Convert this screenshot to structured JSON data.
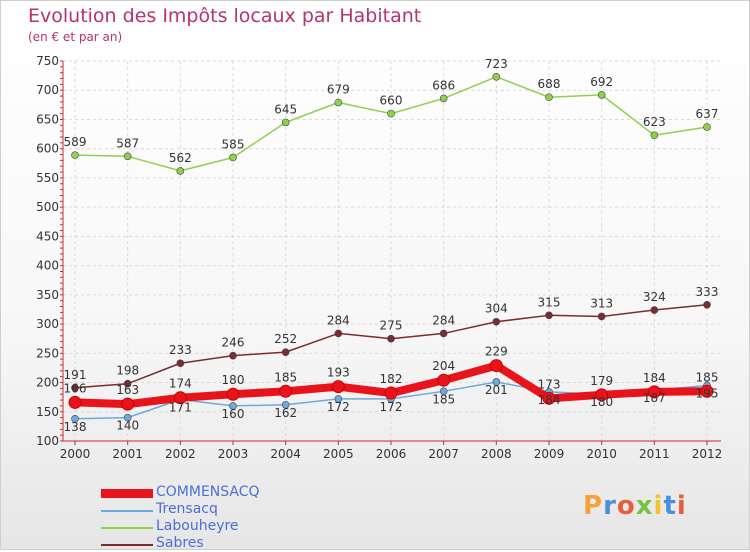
{
  "title": "Evolution des Impôts locaux par Habitant",
  "subtitle": "(en € et par an)",
  "logo": {
    "letters": [
      "P",
      "r",
      "o",
      "x",
      "i",
      "t",
      "i"
    ],
    "colors": [
      "#f2a33a",
      "#4a90d9",
      "#e85d3b",
      "#7ac143",
      "#f2c230",
      "#4a90d9",
      "#e85d3b"
    ]
  },
  "chart_data": {
    "type": "line",
    "title": "Evolution des Impôts locaux par Habitant",
    "subtitle": "(en € et par an)",
    "x": [
      "2000",
      "2001",
      "2002",
      "2003",
      "2004",
      "2005",
      "2006",
      "2007",
      "2008",
      "2009",
      "2010",
      "2011",
      "2012"
    ],
    "ylim": [
      100,
      750
    ],
    "yticks": [
      100,
      150,
      200,
      250,
      300,
      350,
      400,
      450,
      500,
      550,
      600,
      650,
      700,
      750
    ],
    "grid": true,
    "legend_position": "bottom-left",
    "series": [
      {
        "name": "COMMENSACQ",
        "color": "#e8141c",
        "style": "thick",
        "values": [
          166,
          163,
          174,
          180,
          185,
          193,
          182,
          204,
          229,
          173,
          179,
          184,
          185
        ],
        "labels": [
          "166",
          "163",
          "174",
          "180",
          "185",
          "193",
          "182",
          "204",
          "229",
          "173",
          "179",
          "184",
          "185"
        ]
      },
      {
        "name": "Trensacq",
        "color": "#6fa8dc",
        "style": "thin",
        "values": [
          138,
          140,
          171,
          160,
          162,
          172,
          172,
          185,
          201,
          184,
          180,
          187,
          195
        ],
        "labels": [
          "138",
          "140",
          "171",
          "160",
          "162",
          "172",
          "172",
          "185",
          "201",
          "184",
          "180",
          "187",
          "195"
        ]
      },
      {
        "name": "Labouheyre",
        "color": "#8fd14f",
        "style": "thin",
        "values": [
          589,
          587,
          562,
          585,
          645,
          679,
          660,
          686,
          723,
          688,
          692,
          623,
          637
        ],
        "labels": [
          "589",
          "587",
          "562",
          "585",
          "645",
          "679",
          "660",
          "686",
          "723",
          "688",
          "692",
          "623",
          "637"
        ]
      },
      {
        "name": "Sabres",
        "color": "#7b2d2d",
        "style": "thin",
        "values": [
          191,
          198,
          233,
          246,
          252,
          284,
          275,
          284,
          304,
          315,
          313,
          324,
          333
        ],
        "labels": [
          "191",
          "198",
          "233",
          "246",
          "252",
          "284",
          "275",
          "284",
          "304",
          "315",
          "313",
          "324",
          "333"
        ]
      }
    ]
  }
}
